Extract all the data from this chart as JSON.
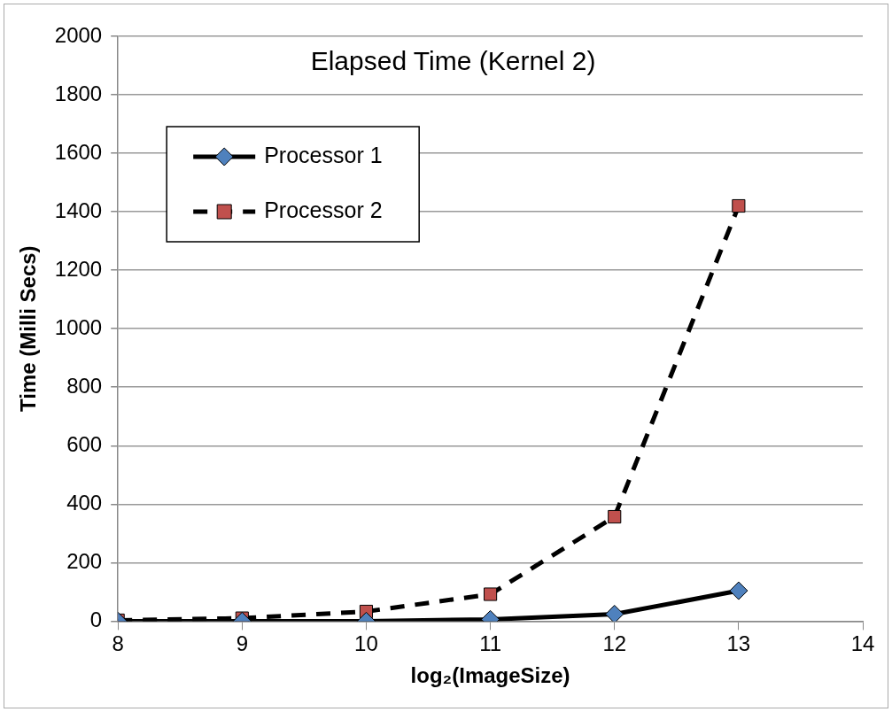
{
  "chart_data": {
    "type": "line",
    "title": "Elapsed Time (Kernel 2)",
    "xlabel": "log₂(ImageSize)",
    "ylabel": "Time (Milli Secs)",
    "x": [
      8,
      9,
      10,
      11,
      12,
      13
    ],
    "series": [
      {
        "name": "Processor 1",
        "color": "#4f81bd",
        "marker": "diamond",
        "line_style": "solid",
        "values": [
          0,
          0,
          0,
          6,
          24,
          104
        ]
      },
      {
        "name": "Processor 2",
        "color": "#c0504d",
        "marker": "square",
        "line_style": "dashed",
        "values": [
          3,
          10,
          33,
          92,
          357,
          1420
        ]
      }
    ],
    "xlim": [
      8,
      14
    ],
    "xticks": [
      8,
      9,
      10,
      11,
      12,
      13,
      14
    ],
    "ylim": [
      0,
      2000
    ],
    "yticks": [
      0,
      200,
      400,
      600,
      800,
      1000,
      1200,
      1400,
      1600,
      1800,
      2000
    ],
    "grid": "y",
    "legend": "top left"
  }
}
